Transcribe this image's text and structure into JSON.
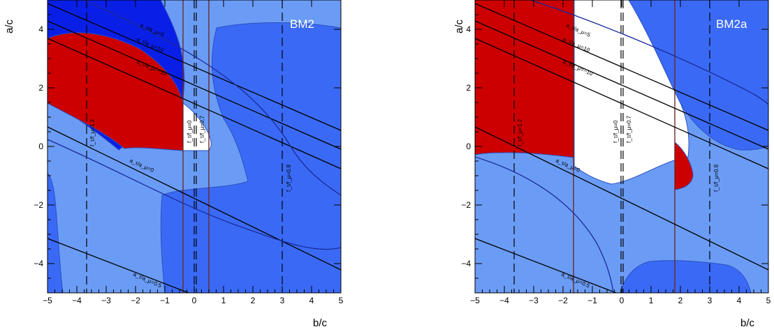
{
  "chart_data": [
    {
      "type": "contour",
      "panel_label": "BM2",
      "xlabel": "b/c",
      "ylabel": "a/c",
      "xlim": [
        -5,
        5
      ],
      "ylim": [
        -5,
        5
      ],
      "xticks": [
        "−5",
        "−4",
        "−3",
        "−2",
        "−1",
        "0",
        "1",
        "2",
        "3",
        "4",
        "5"
      ],
      "yticks": [
        "−4",
        "−2",
        "0",
        "2",
        "4"
      ],
      "annotations": [
        "a_τ/a_μ=5",
        "a_τ/a_μ=10",
        "a_τ/a_μ=−10",
        "a_τ/a_μ=0",
        "a_τ/a_μ=0.5",
        "f_τ/f_μ=1.2",
        "f_τ/f_μ=0",
        "f_τ/f_μ=0.7",
        "f_τ/f_μ=0.8"
      ]
    },
    {
      "type": "contour",
      "panel_label": "BM2a",
      "xlabel": "b/c",
      "ylabel": "a/c",
      "xlim": [
        -5,
        5
      ],
      "ylim": [
        -5,
        5
      ],
      "xticks": [
        "−5",
        "−4",
        "−3",
        "−2",
        "−1",
        "0",
        "1",
        "2",
        "3",
        "4",
        "5"
      ],
      "yticks": [
        "−4",
        "−2",
        "0",
        "2",
        "4"
      ],
      "annotations": [
        "a_τ/a_μ=5",
        "a_τ/a_μ=10",
        "a_τ/a_μ=−10",
        "a_τ/a_μ=0",
        "a_τ/a_μ=0.5",
        "f_τ/f_μ=1.2",
        "f_τ/f_μ=0",
        "f_τ/f_μ=0.7",
        "f_τ/f_μ=0.8"
      ]
    }
  ],
  "colors": {
    "light_blue": "#6b9cf5",
    "mid_blue": "#3a6af5",
    "deep_blue": "#0a1fe6",
    "red": "#cc0000",
    "white": "#ffffff"
  }
}
